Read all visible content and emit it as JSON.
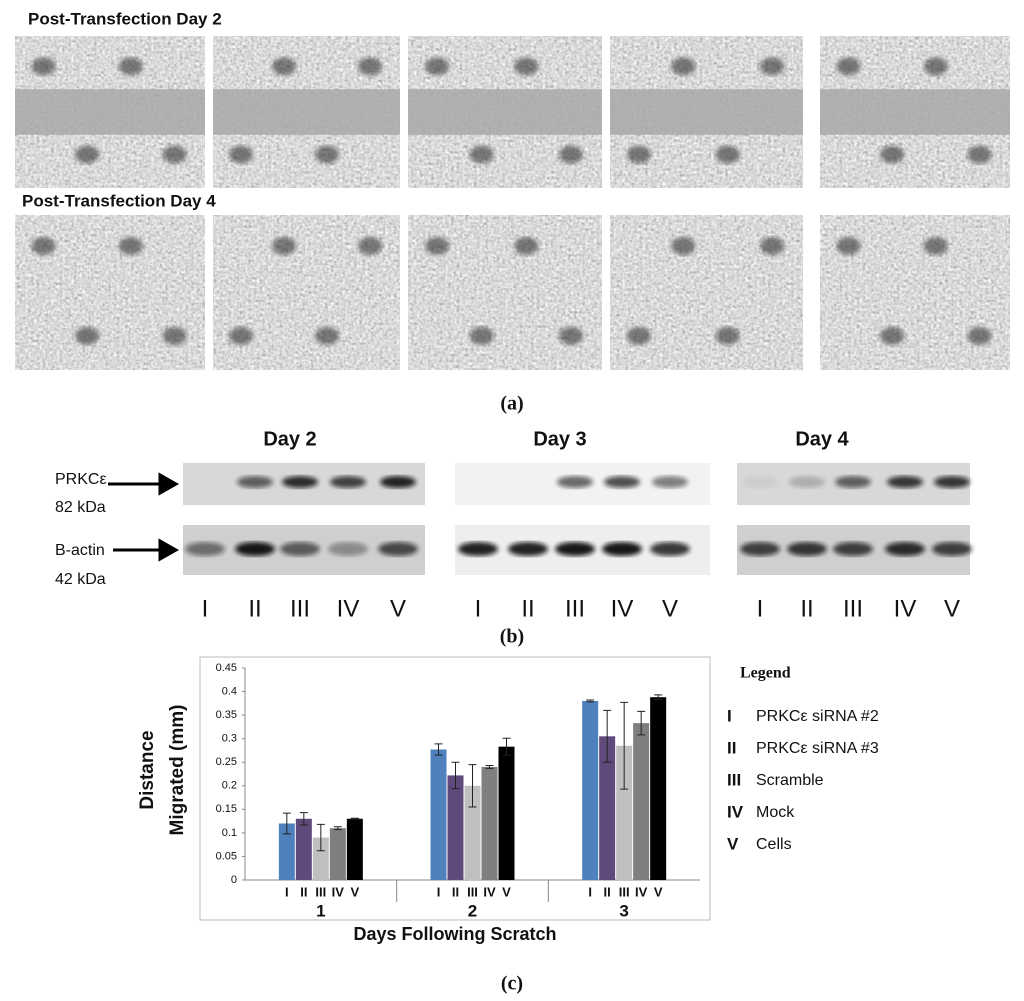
{
  "panel_a": {
    "row_titles": [
      "Post-Transfection Day 2",
      "Post-Transfection Day 4"
    ],
    "caption": "(a)"
  },
  "panel_b": {
    "days": [
      "Day 2",
      "Day 3",
      "Day 4"
    ],
    "protein_labels": [
      [
        "PRKCε",
        "82 kDa"
      ],
      [
        "B-actin",
        "42 kDa"
      ]
    ],
    "lanes": [
      "I",
      "II",
      "III",
      "IV",
      "V"
    ],
    "caption": "(b)"
  },
  "chart_data": {
    "type": "bar",
    "y_label": [
      "Distance",
      "Migrated (mm)"
    ],
    "x_label": "Days Following Scratch",
    "categories": [
      "1",
      "2",
      "3"
    ],
    "ylim": [
      0,
      0.45
    ],
    "yticks": [
      0,
      0.05,
      0.1,
      0.15,
      0.2,
      0.25,
      0.3,
      0.35,
      0.4,
      0.45
    ],
    "legend_title": "Legend",
    "series": [
      {
        "code": "I",
        "name": "PRKCε siRNA #2",
        "color": "#4f81bd",
        "values": [
          0.12,
          0.277,
          0.38
        ],
        "errors": [
          0.022,
          0.012,
          0.002
        ]
      },
      {
        "code": "II",
        "name": "PRKCε siRNA #3",
        "color": "#604a7b",
        "values": [
          0.13,
          0.222,
          0.305
        ],
        "errors": [
          0.013,
          0.028,
          0.055
        ]
      },
      {
        "code": "III",
        "name": "Scramble",
        "color": "#bfbfbf",
        "values": [
          0.09,
          0.2,
          0.285
        ],
        "errors": [
          0.028,
          0.045,
          0.092
        ]
      },
      {
        "code": "IV",
        "name": "Mock",
        "color": "#7f7f7f",
        "values": [
          0.11,
          0.24,
          0.333
        ],
        "errors": [
          0.003,
          0.003,
          0.025
        ]
      },
      {
        "code": "V",
        "name": "Cells",
        "color": "#000000",
        "values": [
          0.13,
          0.283,
          0.388
        ],
        "errors": [
          0.001,
          0.018,
          0.005
        ]
      }
    ],
    "caption": "(c)"
  }
}
